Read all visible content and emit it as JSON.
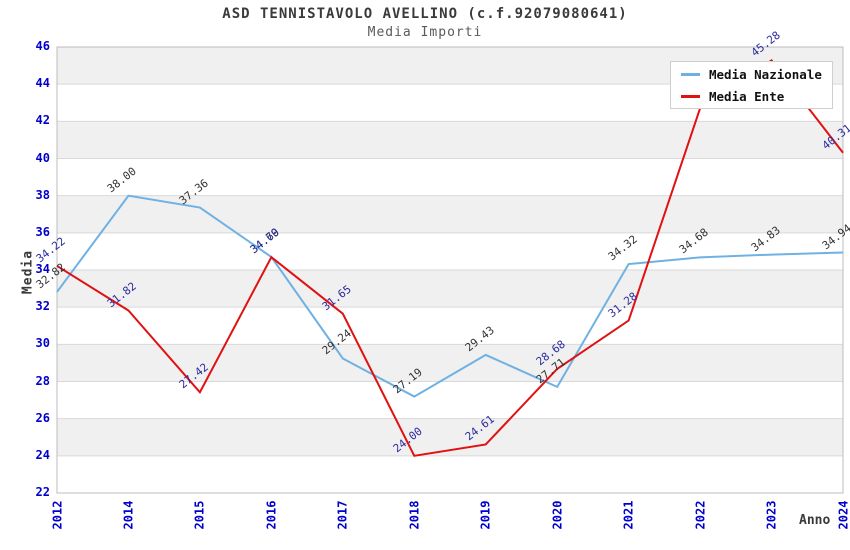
{
  "chart_data": {
    "type": "line",
    "title": "ASD TENNISTAVOLO AVELLINO (c.f.92079080641)",
    "subtitle": "Media Importi",
    "xlabel": "Anno",
    "ylabel": "Media",
    "ylim": [
      22,
      46
    ],
    "ytick_step": 2,
    "grid": "horizontal-bands",
    "band_color": "#f0f0f0",
    "gridline_color": "#d9d9d9",
    "plot_border_color": "#bcbcbc",
    "axis_tick_color": "#0000cc",
    "legend_position": "top-right",
    "categories": [
      "2012",
      "2014",
      "2015",
      "2016",
      "2017",
      "2018",
      "2019",
      "2020",
      "2021",
      "2022",
      "2023",
      "2024"
    ],
    "series": [
      {
        "name": "Media Nazionale",
        "color": "#6fb1e3",
        "label_color": "#333333",
        "values": [
          32.82,
          38.0,
          37.36,
          34.7,
          29.24,
          27.19,
          29.43,
          27.71,
          34.32,
          34.68,
          34.83,
          34.94
        ]
      },
      {
        "name": "Media Ente",
        "color": "#e01111",
        "label_color": "#2b2b9e",
        "values": [
          34.22,
          31.82,
          27.42,
          34.69,
          31.65,
          24.0,
          24.61,
          28.68,
          31.28,
          42.7,
          45.28,
          40.31
        ]
      }
    ]
  }
}
